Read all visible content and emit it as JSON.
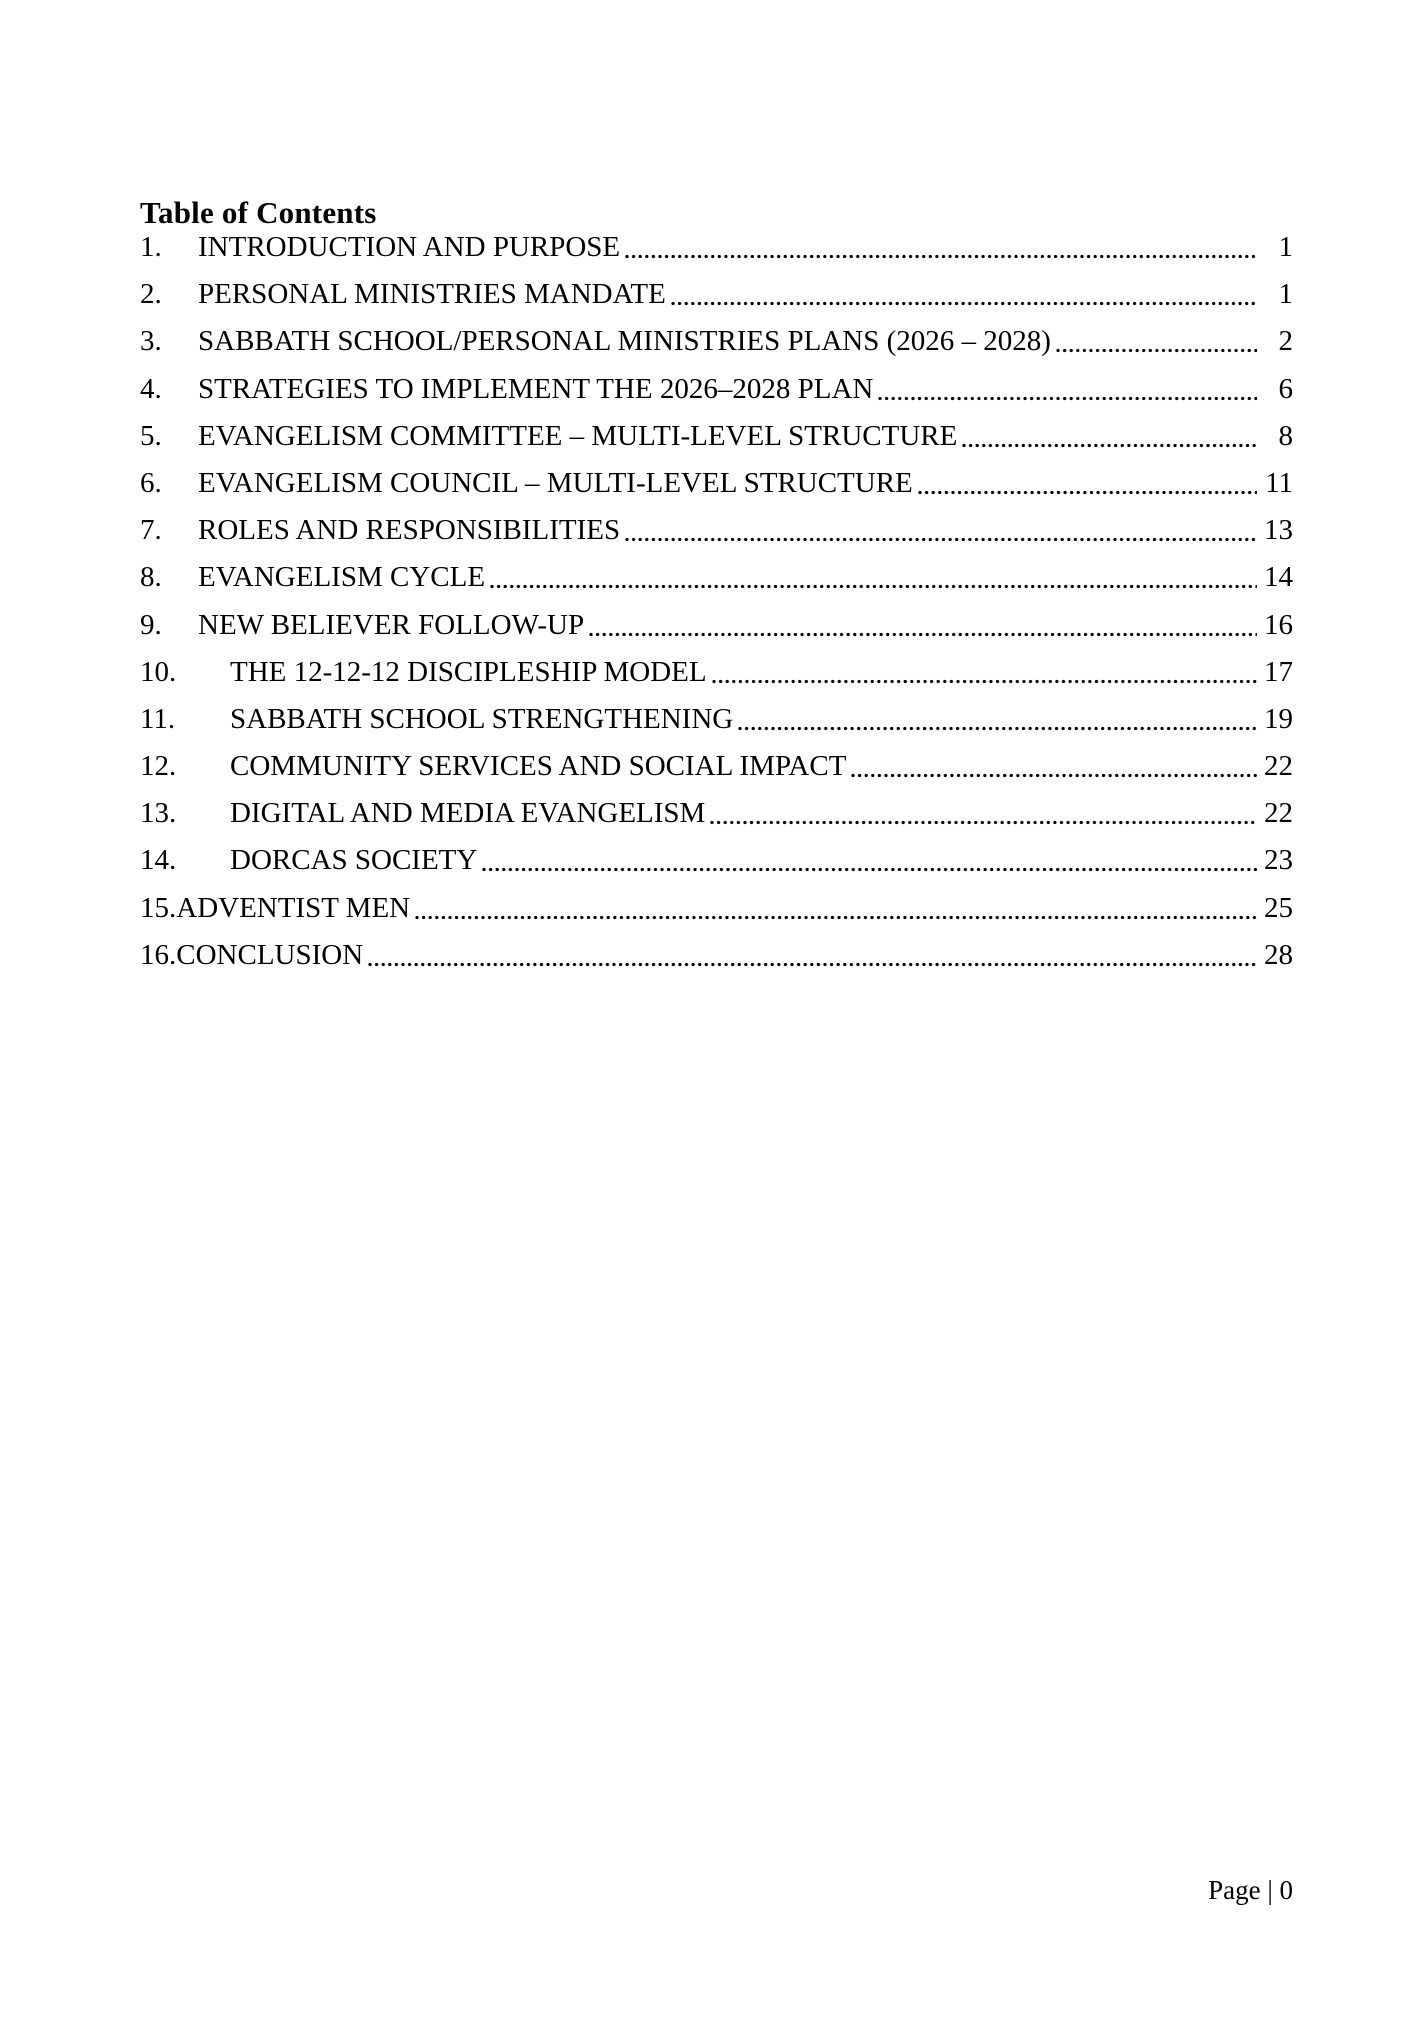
{
  "document": {
    "title": "Table of Contents",
    "footer": "Page | 0",
    "entries": [
      {
        "num": "1.",
        "title": "INTRODUCTION AND PURPOSE",
        "page": "1"
      },
      {
        "num": "2.",
        "title": "PERSONAL MINISTRIES MANDATE",
        "page": "1"
      },
      {
        "num": "3.",
        "title": "SABBATH SCHOOL/PERSONAL MINISTRIES PLANS (2026 – 2028)",
        "page": "2"
      },
      {
        "num": "4.",
        "title": "STRATEGIES TO IMPLEMENT THE 2026–2028 PLAN",
        "page": "6"
      },
      {
        "num": "5.",
        "title": "EVANGELISM COMMITTEE – MULTI-LEVEL STRUCTURE",
        "page": "8"
      },
      {
        "num": "6.",
        "title": "EVANGELISM COUNCIL – MULTI-LEVEL STRUCTURE",
        "page": "11"
      },
      {
        "num": "7.",
        "title": "ROLES AND RESPONSIBILITIES",
        "page": "13"
      },
      {
        "num": "8.",
        "title": "EVANGELISM CYCLE",
        "page": "14"
      },
      {
        "num": "9.",
        "title": "NEW BELIEVER FOLLOW-UP",
        "page": "16"
      },
      {
        "num": "10.",
        "title": "THE 12-12-12 DISCIPLESHIP MODEL",
        "page": "17"
      },
      {
        "num": "11.",
        "title": "SABBATH SCHOOL STRENGTHENING",
        "page": "19"
      },
      {
        "num": "12.",
        "title": "COMMUNITY SERVICES AND SOCIAL IMPACT",
        "page": "22"
      },
      {
        "num": "13.",
        "title": "DIGITAL AND MEDIA EVANGELISM",
        "page": "22"
      },
      {
        "num": "14.",
        "title": "DORCAS SOCIETY",
        "page": "23"
      },
      {
        "num": "15.",
        "title": "ADVENTIST MEN",
        "page": "25"
      },
      {
        "num": "16.",
        "title": "CONCLUSION",
        "page": "28"
      }
    ]
  }
}
